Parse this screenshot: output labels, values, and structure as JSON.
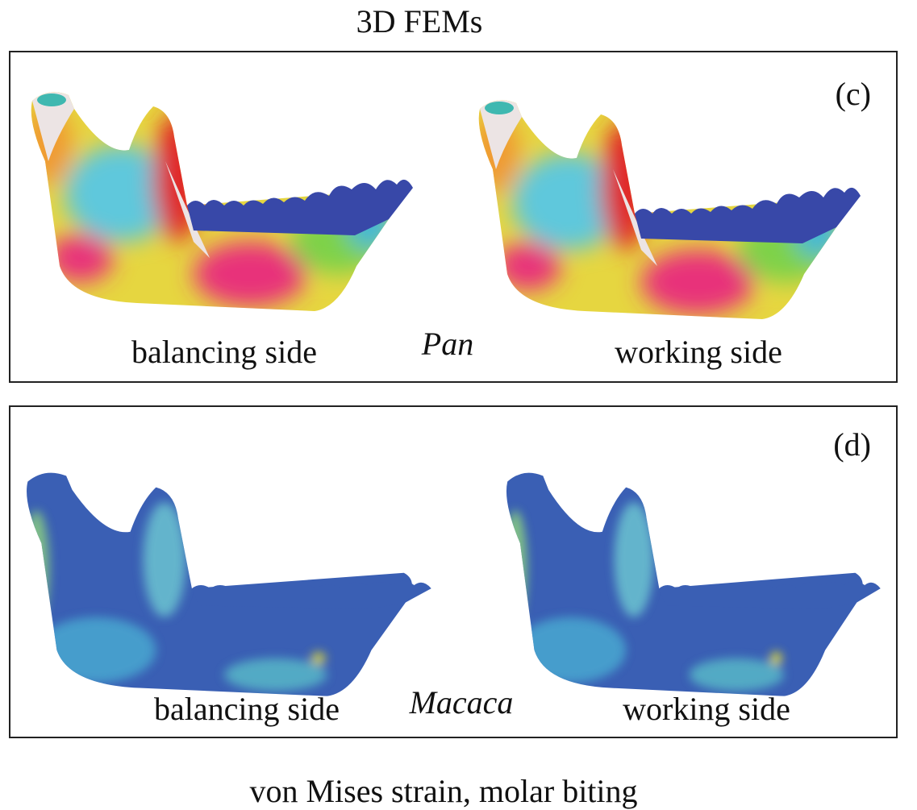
{
  "title": "3D FEMs",
  "panels": [
    {
      "label": "(c)",
      "genus": "Pan",
      "left": "balancing side",
      "right": "working side"
    },
    {
      "label": "(d)",
      "genus": "Macaca",
      "left": "balancing side",
      "right": "working side"
    }
  ],
  "caption": "von Mises strain, molar biting"
}
